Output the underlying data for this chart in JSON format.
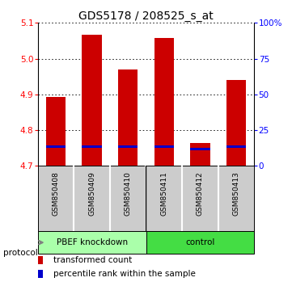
{
  "title": "GDS5178 / 208525_s_at",
  "samples": [
    "GSM850408",
    "GSM850409",
    "GSM850410",
    "GSM850411",
    "GSM850412",
    "GSM850413"
  ],
  "red_values": [
    4.893,
    5.067,
    4.97,
    5.057,
    4.763,
    4.94
  ],
  "blue_values": [
    4.754,
    4.754,
    4.753,
    4.753,
    4.747,
    4.754
  ],
  "base_value": 4.7,
  "ylim_left": [
    4.7,
    5.1
  ],
  "ylim_right": [
    0,
    100
  ],
  "yticks_left": [
    4.7,
    4.8,
    4.9,
    5.0,
    5.1
  ],
  "yticks_right": [
    0,
    25,
    50,
    75,
    100
  ],
  "ytick_labels_right": [
    "0",
    "25",
    "50",
    "75",
    "100%"
  ],
  "groups": [
    {
      "label": "PBEF knockdown",
      "n_samples": 3,
      "color": "#aaffaa"
    },
    {
      "label": "control",
      "n_samples": 3,
      "color": "#44dd44"
    }
  ],
  "protocol_label": "protocol",
  "bar_width": 0.55,
  "red_color": "#cc0000",
  "blue_color": "#0000cc",
  "blue_bar_height": 0.007,
  "sample_bg_color": "#cccccc",
  "plot_bg": "#ffffff",
  "legend_red_label": "transformed count",
  "legend_blue_label": "percentile rank within the sample",
  "title_fontsize": 10,
  "tick_fontsize": 7.5,
  "legend_fontsize": 7.5
}
